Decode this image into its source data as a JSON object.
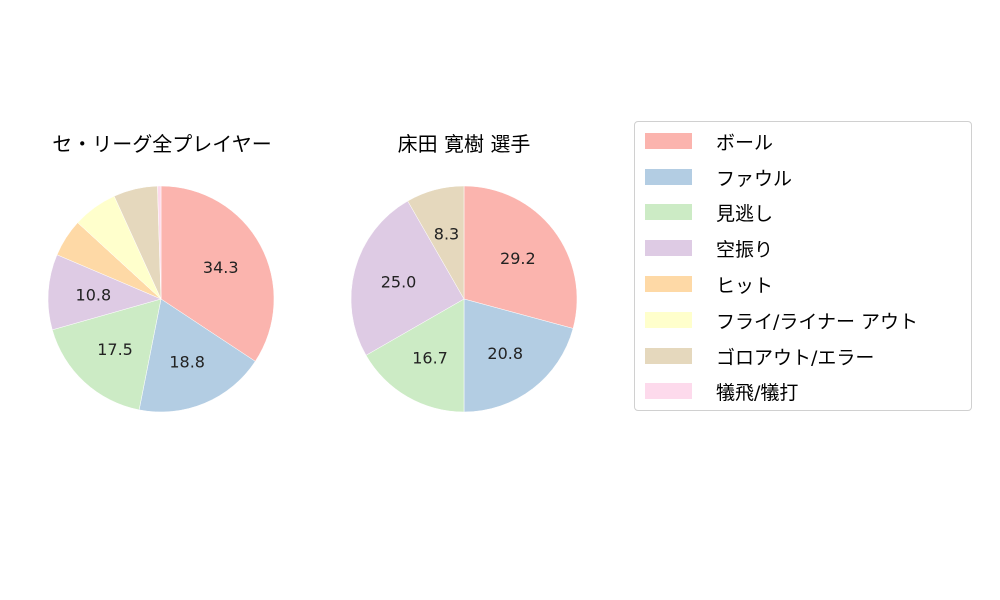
{
  "chart_data": [
    {
      "type": "pie",
      "title": "セ・リーグ全プレイヤー",
      "categories": [
        "ボール",
        "ファウル",
        "見逃し",
        "空振り",
        "ヒット",
        "フライ/ライナー アウト",
        "ゴロアウト/エラー",
        "犠飛/犠打"
      ],
      "values": [
        34.3,
        18.8,
        17.5,
        10.8,
        5.4,
        6.4,
        6.3,
        0.5
      ],
      "labels_shown": [
        "34.3",
        "18.8",
        "17.5",
        "10.8",
        "",
        "",
        "",
        ""
      ]
    },
    {
      "type": "pie",
      "title": "床田 寛樹  選手",
      "categories": [
        "ボール",
        "ファウル",
        "見逃し",
        "空振り",
        "ヒット",
        "フライ/ライナー アウト",
        "ゴロアウト/エラー",
        "犠飛/犠打"
      ],
      "values": [
        29.2,
        20.8,
        16.7,
        25.0,
        0,
        0,
        8.3,
        0
      ],
      "labels_shown": [
        "29.2",
        "20.8",
        "16.7",
        "25.0",
        "",
        "",
        "8.3",
        ""
      ]
    }
  ],
  "titles": {
    "left": "セ・リーグ全プレイヤー",
    "right": "床田 寛樹  選手"
  },
  "legend": {
    "items": [
      {
        "label": "ボール",
        "color": "#fbb4ae"
      },
      {
        "label": "ファウル",
        "color": "#b3cde3"
      },
      {
        "label": "見逃し",
        "color": "#ccebc5"
      },
      {
        "label": "空振り",
        "color": "#decbe4"
      },
      {
        "label": "ヒット",
        "color": "#fed9a6"
      },
      {
        "label": "フライ/ライナー アウト",
        "color": "#ffffcc"
      },
      {
        "label": "ゴロアウト/エラー",
        "color": "#e5d8bd"
      },
      {
        "label": "犠飛/犠打",
        "color": "#fddaec"
      }
    ]
  }
}
